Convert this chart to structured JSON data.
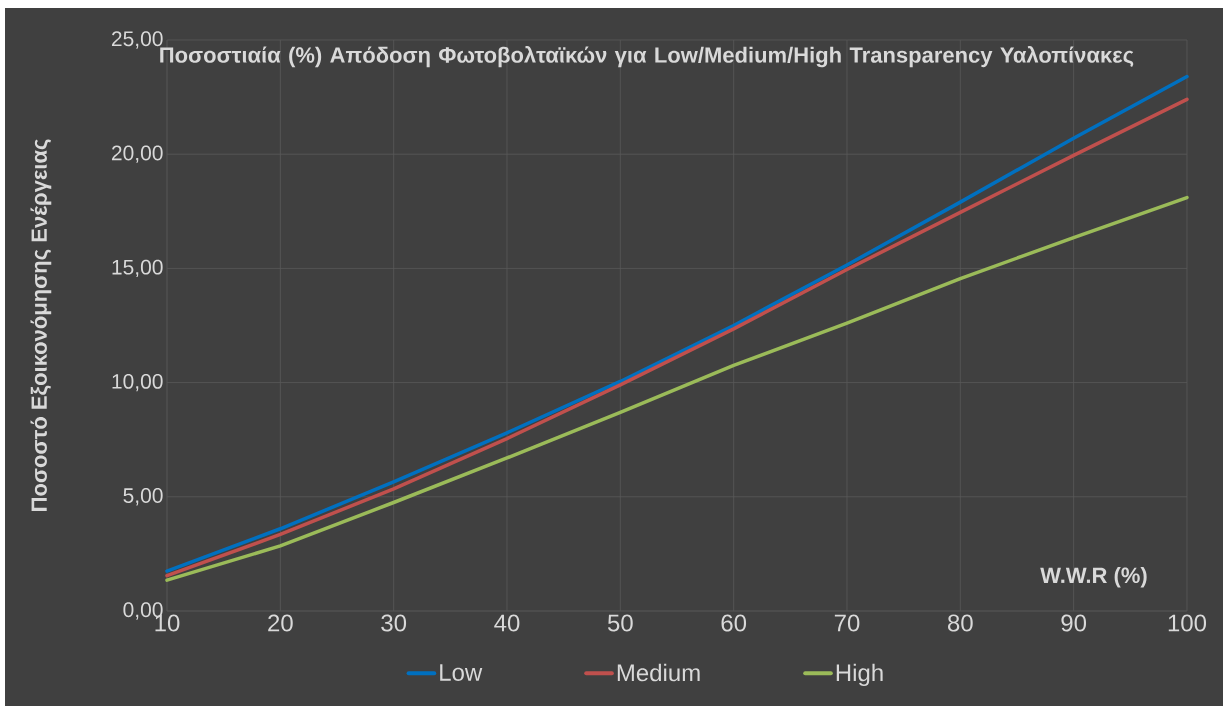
{
  "chart_data": {
    "type": "line",
    "title": "Ποσοστιαία (%) Απόδοση Φωτοβολταϊκών για Low/Medium/High Transparency Υαλοπίνακες",
    "xlabel": "W.W.R (%)",
    "ylabel": "Ποσοστό Εξοικονόμησης Ενέργειας",
    "x": [
      10,
      20,
      30,
      40,
      50,
      60,
      70,
      80,
      90,
      100
    ],
    "series": [
      {
        "name": "Low",
        "color": "#0070c0",
        "values": [
          1.75,
          3.6,
          5.65,
          7.8,
          10.05,
          12.5,
          15.15,
          17.9,
          20.7,
          23.4
        ]
      },
      {
        "name": "Medium",
        "color": "#c0504d",
        "values": [
          1.55,
          3.35,
          5.35,
          7.55,
          9.9,
          12.35,
          14.95,
          17.45,
          19.95,
          22.4
        ]
      },
      {
        "name": "High",
        "color": "#9bbb59",
        "values": [
          1.35,
          2.85,
          4.75,
          6.7,
          8.7,
          10.75,
          12.6,
          14.55,
          16.35,
          18.1
        ]
      }
    ],
    "xlim": [
      10,
      100
    ],
    "ylim": [
      0,
      25
    ],
    "xticks": [
      10,
      20,
      30,
      40,
      50,
      60,
      70,
      80,
      90,
      100
    ],
    "yticks": [
      {
        "value": 0,
        "label": "0,00"
      },
      {
        "value": 5,
        "label": "5,00"
      },
      {
        "value": 10,
        "label": "10,00"
      },
      {
        "value": 15,
        "label": "15,00"
      },
      {
        "value": 20,
        "label": "20,00"
      },
      {
        "value": 25,
        "label": "25,00"
      }
    ],
    "grid": true,
    "legend": "bottom",
    "marker": "none",
    "line_style": "solid"
  }
}
